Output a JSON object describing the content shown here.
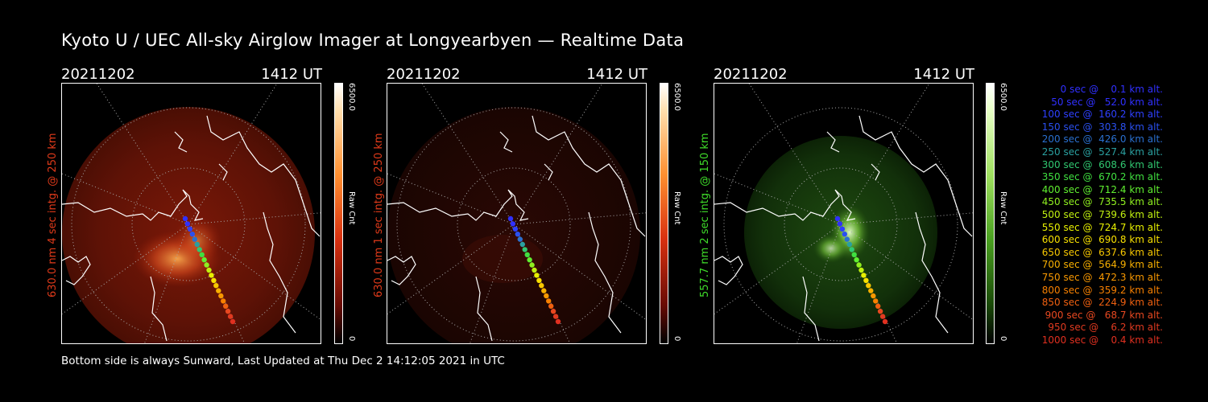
{
  "title": "Kyoto U / UEC All-sky Airglow Imager at Longyearbyen — Realtime Data",
  "panels": [
    {
      "date": "20211202",
      "time": "1412 UT",
      "side_label": "630.0 nm 4 sec intg. @ 250 km",
      "label_color": "#e03a1a",
      "cbar_max": "6500.0",
      "cbar_unit": "Raw Cnt",
      "cbar_min": "0",
      "theme": "red"
    },
    {
      "date": "20211202",
      "time": "1412 UT",
      "side_label": "630.0 nm 1 sec intg. @ 250 km",
      "label_color": "#e03a1a",
      "cbar_max": "6500.0",
      "cbar_unit": "Raw Cnt",
      "cbar_min": "0",
      "theme": "dimred"
    },
    {
      "date": "20211202",
      "time": "1412 UT",
      "side_label": "557.7 nm 2 sec intg. @ 150 km",
      "label_color": "#3fdc2a",
      "cbar_max": "6500.0",
      "cbar_unit": "Raw Cnt",
      "cbar_min": "0",
      "theme": "green"
    }
  ],
  "footer": "Bottom side is always Sunward, Last Updated at Thu Dec  2 14:12:05 2021 in UTC",
  "legend": [
    {
      "text": "   0 sec @    0.1 km alt.",
      "color": "#3030ff"
    },
    {
      "text": "  50 sec @   52.0 km alt.",
      "color": "#3030ff"
    },
    {
      "text": " 100 sec @  160.2 km alt.",
      "color": "#2e40ff"
    },
    {
      "text": " 150 sec @  303.8 km alt.",
      "color": "#2a50f0"
    },
    {
      "text": " 200 sec @  426.0 km alt.",
      "color": "#2a70d0"
    },
    {
      "text": " 250 sec @  527.4 km alt.",
      "color": "#2aa0a0"
    },
    {
      "text": " 300 sec @  608.6 km alt.",
      "color": "#30c870"
    },
    {
      "text": " 350 sec @  670.2 km alt.",
      "color": "#40e040"
    },
    {
      "text": " 400 sec @  712.4 km alt.",
      "color": "#60f030"
    },
    {
      "text": " 450 sec @  735.5 km alt.",
      "color": "#90f020"
    },
    {
      "text": " 500 sec @  739.6 km alt.",
      "color": "#c0f010"
    },
    {
      "text": " 550 sec @  724.7 km alt.",
      "color": "#e8f000"
    },
    {
      "text": " 600 sec @  690.8 km alt.",
      "color": "#f8e000"
    },
    {
      "text": " 650 sec @  637.6 km alt.",
      "color": "#f8c800"
    },
    {
      "text": " 700 sec @  564.9 km alt.",
      "color": "#f8b000"
    },
    {
      "text": " 750 sec @  472.3 km alt.",
      "color": "#f89800"
    },
    {
      "text": " 800 sec @  359.2 km alt.",
      "color": "#f88000"
    },
    {
      "text": " 850 sec @  224.9 km alt.",
      "color": "#f06010"
    },
    {
      "text": " 900 sec @   68.7 km alt.",
      "color": "#e84820"
    },
    {
      "text": " 950 sec @    6.2 km alt.",
      "color": "#e03a20"
    },
    {
      "text": "1000 sec @    0.4 km alt.",
      "color": "#e03020"
    }
  ]
}
